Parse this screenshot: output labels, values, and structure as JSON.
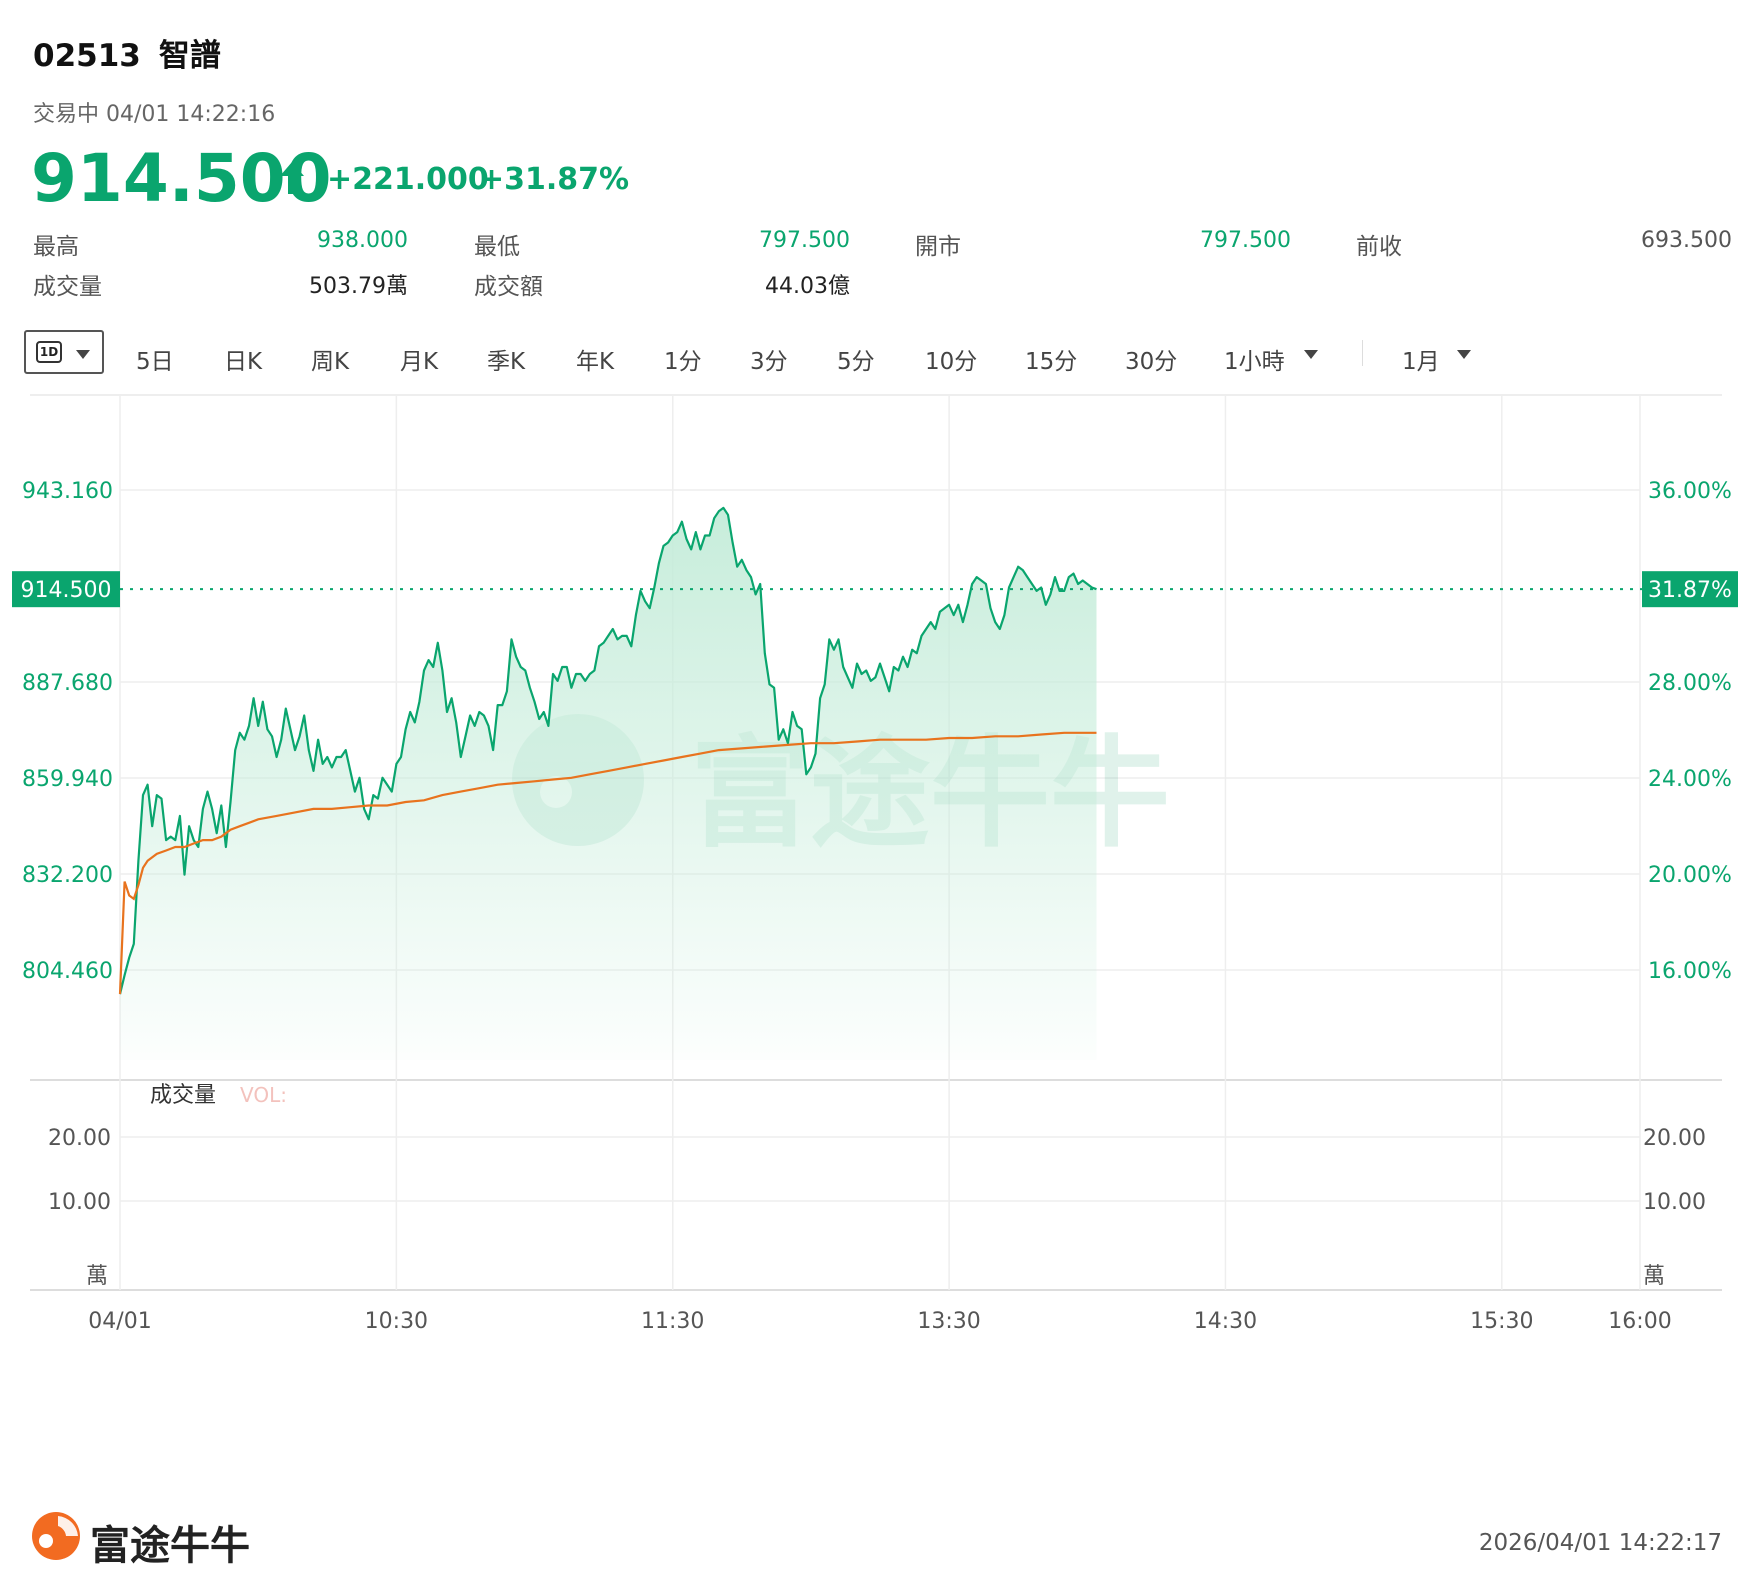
{
  "header": {
    "code": "02513",
    "name": "智譜",
    "status": "交易中 04/01 14:22:16",
    "price": "914.500",
    "change": "+221.000",
    "change_pct": "+31.87%",
    "direction_icon": "up-arrow-icon"
  },
  "stats": {
    "row1": [
      {
        "label": "最高",
        "value": "938.000"
      },
      {
        "label": "最低",
        "value": "797.500"
      },
      {
        "label": "開市",
        "value": "797.500"
      },
      {
        "label": "前收",
        "value": "693.500"
      }
    ],
    "row2": [
      {
        "label": "成交量",
        "value": "503.79萬"
      },
      {
        "label": "成交額",
        "value": "44.03億"
      }
    ]
  },
  "toolbar": {
    "selected": "1D",
    "items": [
      "5日",
      "日K",
      "周K",
      "月K",
      "季K",
      "年K",
      "1分",
      "3分",
      "5分",
      "10分",
      "15分",
      "30分",
      "1小時"
    ],
    "range": "1月"
  },
  "colors": {
    "up": "#0aa56e",
    "avg_line": "#e8731e",
    "grid": "#eeeeee",
    "area_top": "#c4ecd9"
  },
  "chart_data": {
    "type": "line",
    "price_axis": {
      "ticks": [
        "943.160",
        "887.680",
        "859.940",
        "832.200",
        "804.460"
      ],
      "tick_values": [
        943.16,
        887.68,
        859.94,
        832.2,
        804.46
      ],
      "current_label": "914.500"
    },
    "pct_axis": {
      "ticks": [
        "36.00%",
        "28.00%",
        "24.00%",
        "20.00%",
        "16.00%"
      ],
      "current_label": "31.87%"
    },
    "reference_value": 914.5,
    "x_ticks": [
      "04/01",
      "10:30",
      "11:30",
      "13:30",
      "14:30",
      "15:30",
      "16:00"
    ],
    "x_tick_minutes": [
      0,
      60,
      120,
      180,
      240,
      300,
      330
    ],
    "x_range": [
      0,
      330
    ],
    "series": [
      {
        "values": [
          [
            0,
            797.5
          ],
          [
            1,
            803
          ],
          [
            2,
            808
          ],
          [
            3,
            812
          ],
          [
            4,
            836
          ],
          [
            5,
            855
          ],
          [
            6,
            858
          ],
          [
            7,
            846
          ],
          [
            8,
            855
          ],
          [
            9,
            854
          ],
          [
            10,
            842
          ],
          [
            11,
            843
          ],
          [
            12,
            842
          ],
          [
            13,
            849
          ],
          [
            14,
            832
          ],
          [
            15,
            846
          ],
          [
            16,
            842
          ],
          [
            17,
            840
          ],
          [
            18,
            851
          ],
          [
            19,
            856
          ],
          [
            20,
            851
          ],
          [
            21,
            844
          ],
          [
            22,
            852
          ],
          [
            23,
            840
          ],
          [
            24,
            853
          ],
          [
            25,
            868
          ],
          [
            26,
            873
          ],
          [
            27,
            871
          ],
          [
            28,
            875
          ],
          [
            29,
            883
          ],
          [
            30,
            875
          ],
          [
            31,
            882
          ],
          [
            32,
            874
          ],
          [
            33,
            872
          ],
          [
            34,
            866
          ],
          [
            35,
            871
          ],
          [
            36,
            880
          ],
          [
            37,
            874
          ],
          [
            38,
            868
          ],
          [
            39,
            872
          ],
          [
            40,
            878
          ],
          [
            41,
            868
          ],
          [
            42,
            862
          ],
          [
            43,
            871
          ],
          [
            44,
            864
          ],
          [
            45,
            866
          ],
          [
            46,
            863
          ],
          [
            47,
            866
          ],
          [
            48,
            866
          ],
          [
            49,
            868
          ],
          [
            50,
            862
          ],
          [
            51,
            856
          ],
          [
            52,
            860
          ],
          [
            53,
            851
          ],
          [
            54,
            848
          ],
          [
            55,
            855
          ],
          [
            56,
            854
          ],
          [
            57,
            860
          ],
          [
            58,
            858
          ],
          [
            59,
            856
          ],
          [
            60,
            864
          ],
          [
            61,
            866
          ],
          [
            62,
            874
          ],
          [
            63,
            879
          ],
          [
            64,
            876
          ],
          [
            65,
            882
          ],
          [
            66,
            891
          ],
          [
            67,
            894
          ],
          [
            68,
            892
          ],
          [
            69,
            899
          ],
          [
            70,
            891
          ],
          [
            71,
            879
          ],
          [
            72,
            883
          ],
          [
            73,
            876
          ],
          [
            74,
            866
          ],
          [
            75,
            872
          ],
          [
            76,
            878
          ],
          [
            77,
            875
          ],
          [
            78,
            879
          ],
          [
            79,
            878
          ],
          [
            80,
            875
          ],
          [
            81,
            868
          ],
          [
            82,
            881
          ],
          [
            83,
            881
          ],
          [
            84,
            885
          ],
          [
            85,
            900
          ],
          [
            86,
            895
          ],
          [
            87,
            892
          ],
          [
            88,
            891
          ],
          [
            89,
            886
          ],
          [
            90,
            882
          ],
          [
            91,
            877
          ],
          [
            92,
            879
          ],
          [
            93,
            875
          ],
          [
            94,
            890
          ],
          [
            95,
            888
          ],
          [
            96,
            892
          ],
          [
            97,
            892
          ],
          [
            98,
            886
          ],
          [
            99,
            890
          ],
          [
            100,
            890
          ],
          [
            101,
            888
          ],
          [
            102,
            890
          ],
          [
            103,
            891
          ],
          [
            104,
            898
          ],
          [
            105,
            899
          ],
          [
            106,
            901
          ],
          [
            107,
            903
          ],
          [
            108,
            900
          ],
          [
            109,
            901
          ],
          [
            110,
            901
          ],
          [
            111,
            898
          ],
          [
            112,
            907
          ],
          [
            113,
            914
          ],
          [
            114,
            911
          ],
          [
            115,
            909
          ],
          [
            116,
            915
          ],
          [
            117,
            922
          ],
          [
            118,
            927
          ],
          [
            119,
            928
          ],
          [
            120,
            930
          ],
          [
            121,
            931
          ],
          [
            122,
            934
          ],
          [
            123,
            929
          ],
          [
            124,
            926
          ],
          [
            125,
            931
          ],
          [
            126,
            926
          ],
          [
            127,
            930
          ],
          [
            128,
            930
          ],
          [
            129,
            935
          ],
          [
            130,
            937
          ],
          [
            131,
            938
          ],
          [
            132,
            936
          ],
          [
            133,
            928
          ],
          [
            134,
            921
          ],
          [
            135,
            923
          ],
          [
            136,
            920
          ],
          [
            137,
            918
          ],
          [
            138,
            913
          ],
          [
            139,
            916
          ],
          [
            140,
            896
          ],
          [
            141,
            887
          ],
          [
            142,
            886
          ],
          [
            143,
            871
          ],
          [
            144,
            874
          ],
          [
            145,
            870
          ],
          [
            146,
            879
          ],
          [
            147,
            875
          ],
          [
            148,
            874
          ],
          [
            149,
            861
          ],
          [
            150,
            863
          ],
          [
            151,
            867
          ],
          [
            152,
            883
          ],
          [
            153,
            887
          ],
          [
            154,
            900
          ],
          [
            155,
            897
          ],
          [
            156,
            900
          ],
          [
            157,
            892
          ],
          [
            158,
            889
          ],
          [
            159,
            886
          ],
          [
            160,
            893
          ],
          [
            161,
            890
          ],
          [
            162,
            891
          ],
          [
            163,
            888
          ],
          [
            164,
            889
          ],
          [
            165,
            893
          ],
          [
            166,
            889
          ],
          [
            167,
            885
          ],
          [
            168,
            892
          ],
          [
            169,
            891
          ],
          [
            170,
            895
          ],
          [
            171,
            892
          ],
          [
            172,
            897
          ],
          [
            173,
            896
          ],
          [
            174,
            901
          ],
          [
            175,
            903
          ],
          [
            176,
            905
          ],
          [
            177,
            903
          ],
          [
            178,
            908
          ],
          [
            179,
            909
          ],
          [
            180,
            910
          ],
          [
            181,
            907
          ],
          [
            182,
            910
          ],
          [
            183,
            905
          ],
          [
            184,
            910
          ],
          [
            185,
            916
          ],
          [
            186,
            918
          ],
          [
            187,
            917
          ],
          [
            188,
            916
          ],
          [
            189,
            909
          ],
          [
            190,
            905
          ],
          [
            191,
            903
          ],
          [
            192,
            907
          ],
          [
            193,
            915
          ],
          [
            194,
            918
          ],
          [
            195,
            921
          ],
          [
            196,
            920
          ],
          [
            197,
            918
          ],
          [
            198,
            916
          ],
          [
            199,
            914
          ],
          [
            200,
            915
          ],
          [
            201,
            910
          ],
          [
            202,
            913
          ],
          [
            203,
            918
          ],
          [
            204,
            914
          ],
          [
            205,
            914
          ],
          [
            206,
            918
          ],
          [
            207,
            919
          ],
          [
            208,
            916
          ],
          [
            209,
            917
          ],
          [
            210,
            916
          ],
          [
            211,
            915
          ],
          [
            212,
            914.5
          ]
        ]
      },
      {
        "values": [
          [
            0,
            797.5
          ],
          [
            1,
            830
          ],
          [
            2,
            826
          ],
          [
            3,
            825
          ],
          [
            4,
            829
          ],
          [
            5,
            834
          ],
          [
            6,
            836
          ],
          [
            8,
            838
          ],
          [
            10,
            839
          ],
          [
            12,
            840
          ],
          [
            14,
            840
          ],
          [
            16,
            841
          ],
          [
            18,
            842
          ],
          [
            20,
            842
          ],
          [
            22,
            843
          ],
          [
            24,
            845
          ],
          [
            26,
            846
          ],
          [
            28,
            847
          ],
          [
            30,
            848
          ],
          [
            34,
            849
          ],
          [
            38,
            850
          ],
          [
            42,
            851
          ],
          [
            46,
            851
          ],
          [
            50,
            851.5
          ],
          [
            54,
            852
          ],
          [
            58,
            852
          ],
          [
            62,
            853
          ],
          [
            66,
            853.5
          ],
          [
            70,
            855
          ],
          [
            74,
            856
          ],
          [
            78,
            857
          ],
          [
            82,
            858
          ],
          [
            86,
            858.5
          ],
          [
            90,
            859
          ],
          [
            94,
            859.5
          ],
          [
            98,
            860
          ],
          [
            102,
            861
          ],
          [
            106,
            862
          ],
          [
            110,
            863
          ],
          [
            114,
            864
          ],
          [
            118,
            865
          ],
          [
            122,
            866
          ],
          [
            126,
            867
          ],
          [
            130,
            868
          ],
          [
            135,
            868.5
          ],
          [
            140,
            869
          ],
          [
            145,
            869.5
          ],
          [
            150,
            870
          ],
          [
            155,
            870
          ],
          [
            160,
            870.5
          ],
          [
            165,
            871
          ],
          [
            170,
            871
          ],
          [
            175,
            871
          ],
          [
            180,
            871.5
          ],
          [
            185,
            871.5
          ],
          [
            190,
            872
          ],
          [
            195,
            872
          ],
          [
            200,
            872.5
          ],
          [
            205,
            873
          ],
          [
            212,
            873
          ]
        ]
      }
    ],
    "volume_panel": {
      "label": "成交量",
      "vol_label": "VOL:",
      "ticks": [
        "20.00",
        "10.00"
      ],
      "tick_values": [
        20,
        10
      ],
      "unit": "萬"
    }
  },
  "footer": {
    "brand": "富途牛牛",
    "timestamp": "2026/04/01 14:22:17",
    "watermark": "富途牛牛"
  }
}
